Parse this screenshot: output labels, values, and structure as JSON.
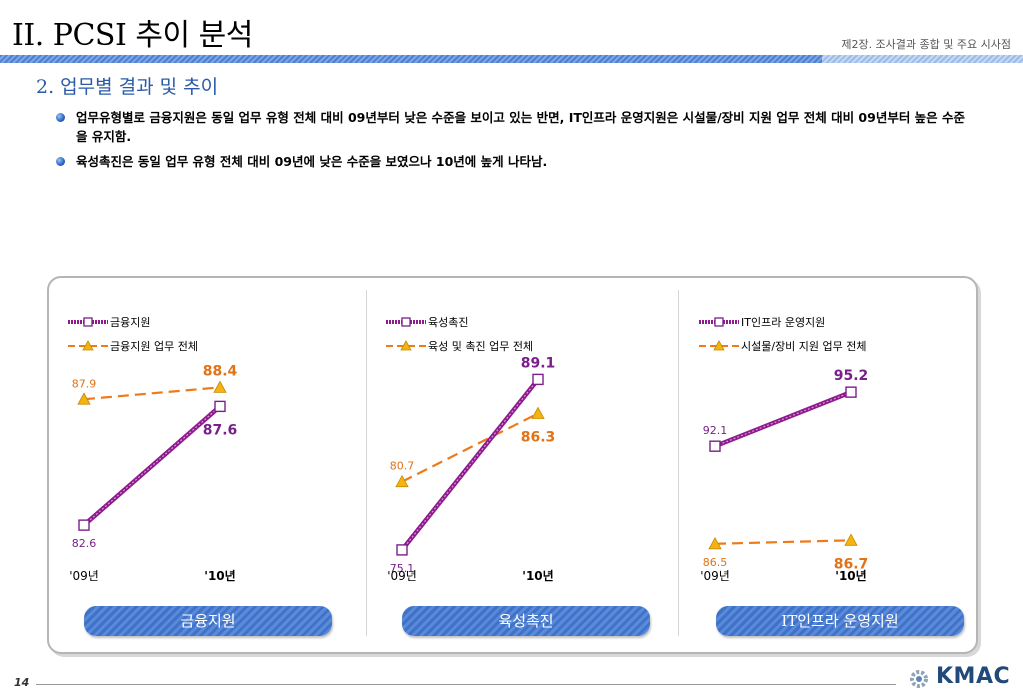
{
  "header": {
    "title": "II. PCSI 추이 분석",
    "chapter": "제2장. 조사결과 종합 및 주요 시사점"
  },
  "section_title": "2. 업무별 결과 및 추이",
  "bullets": [
    "업무유형별로 금융지원은 동일 업무 유형 전체 대비 09년부터 낮은 수준을 보이고 있는 반면, IT인프라 운영지원은 시설물/장비 지원 업무 전체 대비 09년부터 높은 수준을 유지함.",
    "육성촉진은 동일 업무 유형 전체 대비 09년에 낮은 수준을 보였으나 10년에 높게 나타남."
  ],
  "colors": {
    "primary_series": "#8e1a8e",
    "primary_marker": "#7a1f8a",
    "comparison_series": "#ef7a1a",
    "comparison_marker": "#f6b30f",
    "primary_label": "#7a1f8a",
    "comparison_label": "#e07316"
  },
  "chart_data": [
    {
      "type": "line",
      "categories": [
        "'09년",
        "'10년"
      ],
      "series": [
        {
          "name": "금융지원",
          "values": [
            82.6,
            87.6
          ],
          "style": "solid-square"
        },
        {
          "name": "금융지원 업무 전체",
          "values": [
            87.9,
            88.4
          ],
          "style": "dashed-triangle"
        }
      ],
      "value_labels": [
        [
          "82.6",
          "87.6"
        ],
        [
          "87.9",
          "88.4"
        ]
      ],
      "ylim": [
        81.3,
        89.3
      ],
      "legend": "top-left"
    },
    {
      "type": "line",
      "categories": [
        "'09년",
        "'10년"
      ],
      "series": [
        {
          "name": "육성촉진",
          "values": [
            75.1,
            89.1
          ],
          "style": "solid-square"
        },
        {
          "name": "육성 및 촉진 업무 전체",
          "values": [
            80.7,
            86.3
          ],
          "style": "dashed-triangle"
        }
      ],
      "value_labels": [
        [
          "75.1",
          "89.1"
        ],
        [
          "80.7",
          "86.3"
        ]
      ],
      "ylim": [
        74.6,
        90.2
      ],
      "legend": "top-left"
    },
    {
      "type": "line",
      "categories": [
        "'09년",
        "'10년"
      ],
      "series": [
        {
          "name": "IT인프라 운영지원",
          "values": [
            92.1,
            95.2
          ],
          "style": "solid-square"
        },
        {
          "name": "시설물/장비 지원 업무 전체",
          "values": [
            86.5,
            86.7
          ],
          "style": "dashed-triangle"
        }
      ],
      "value_labels": [
        [
          "92.1",
          "95.2"
        ],
        [
          "86.5",
          "86.7"
        ]
      ],
      "ylim": [
        85.8,
        96.7
      ],
      "legend": "top-left"
    }
  ],
  "panel_labels": [
    "금융지원",
    "육성촉진",
    "IT인프라 운영지원"
  ],
  "footer": {
    "page_number": "14",
    "logo_text": "KMAC"
  }
}
